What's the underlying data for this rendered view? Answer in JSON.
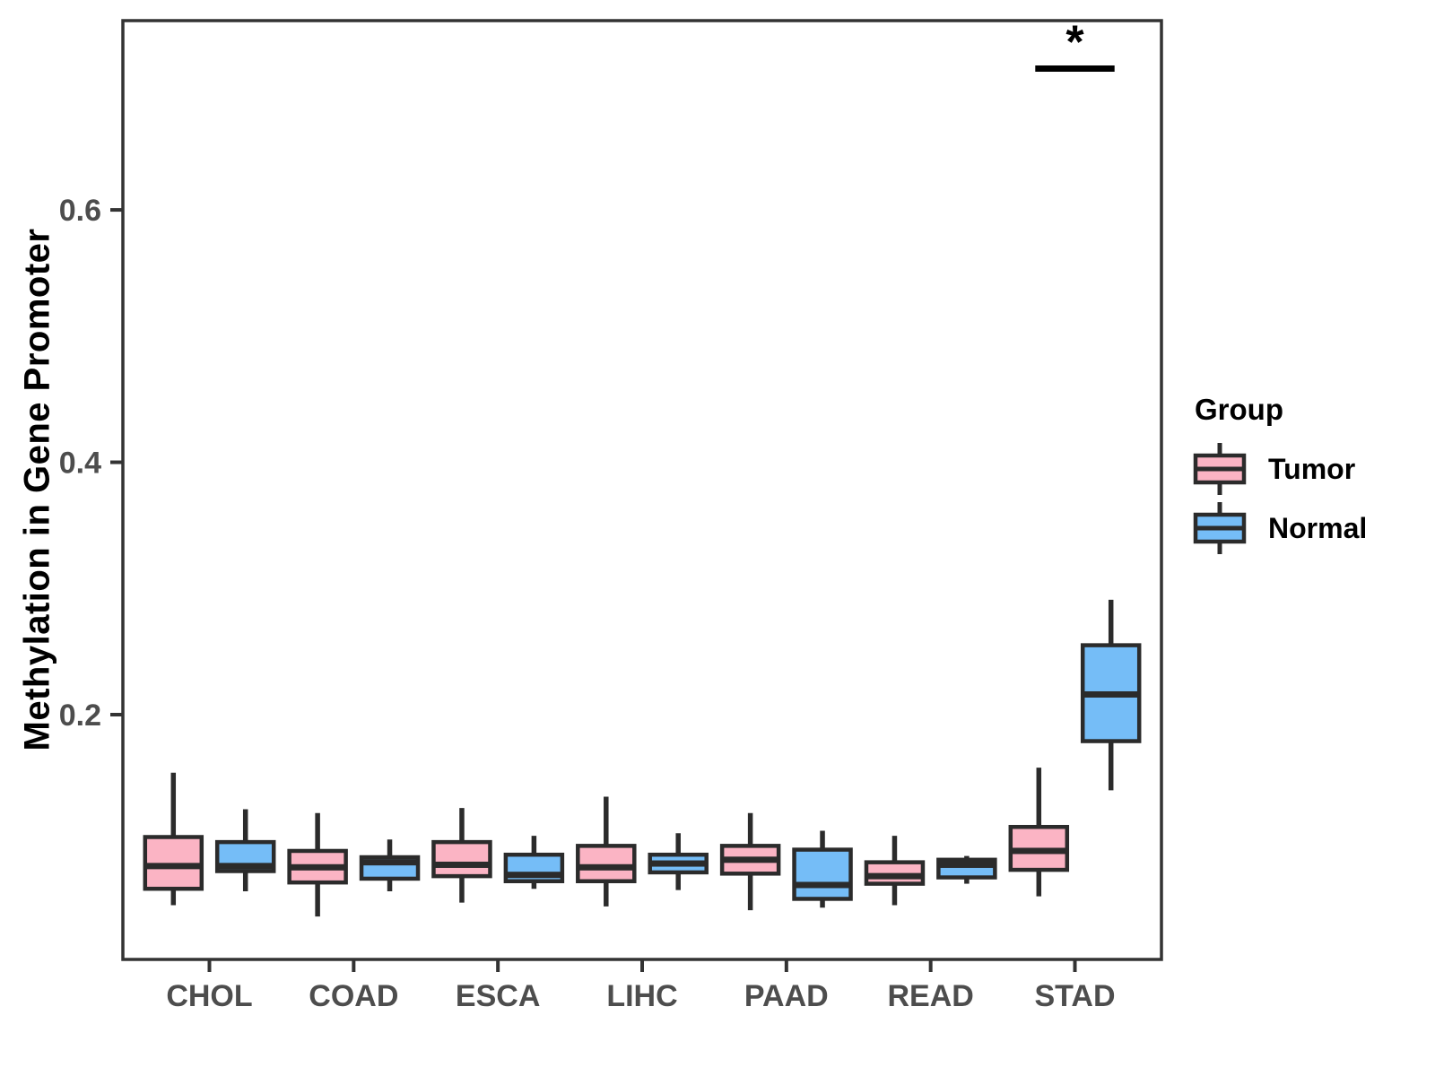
{
  "colors": {
    "tumor_fill": "#FBB4C4",
    "normal_fill": "#75BDF7",
    "box_stroke": "#2B2B2B",
    "panel_border": "#333333",
    "tick_label": "#4D4D4D",
    "text": "#000000",
    "background": "#FFFFFF"
  },
  "legend": {
    "title": "Group",
    "items": [
      {
        "id": "tumor",
        "label": "Tumor",
        "fill": "#FBB4C4"
      },
      {
        "id": "normal",
        "label": "Normal",
        "fill": "#75BDF7"
      }
    ]
  },
  "chart_data": {
    "type": "boxplot",
    "title": "",
    "xlabel": "",
    "ylabel": "Methylation in Gene Promoter",
    "categories": [
      "CHOL",
      "COAD",
      "ESCA",
      "LIHC",
      "PAAD",
      "READ",
      "STAD"
    ],
    "yticks": [
      0.2,
      0.4,
      0.6
    ],
    "ytick_labels": [
      "0.2",
      "0.4",
      "0.6"
    ],
    "ylim": [
      0.006,
      0.75
    ],
    "grid": false,
    "legend_title": "Group",
    "legend_position": "right",
    "stats_order": [
      "whisker_low",
      "q1",
      "median",
      "q3",
      "whisker_high"
    ],
    "series": [
      {
        "name": "Tumor",
        "fill": "#FBB4C4",
        "stats": [
          [
            0.049,
            0.062,
            0.08,
            0.103,
            0.154
          ],
          [
            0.04,
            0.067,
            0.079,
            0.092,
            0.122
          ],
          [
            0.051,
            0.072,
            0.081,
            0.099,
            0.126
          ],
          [
            0.048,
            0.068,
            0.079,
            0.096,
            0.135
          ],
          [
            0.045,
            0.074,
            0.085,
            0.096,
            0.122
          ],
          [
            0.049,
            0.066,
            0.072,
            0.083,
            0.104
          ],
          [
            0.056,
            0.077,
            0.092,
            0.111,
            0.158
          ]
        ]
      },
      {
        "name": "Normal",
        "fill": "#75BDF7",
        "stats": [
          [
            0.06,
            0.076,
            0.08,
            0.099,
            0.125
          ],
          [
            0.06,
            0.07,
            0.083,
            0.087,
            0.101
          ],
          [
            0.062,
            0.068,
            0.073,
            0.089,
            0.104
          ],
          [
            0.061,
            0.075,
            0.082,
            0.089,
            0.106
          ],
          [
            0.047,
            0.054,
            0.065,
            0.093,
            0.108
          ],
          [
            0.066,
            0.071,
            0.081,
            0.085,
            0.088
          ],
          [
            0.14,
            0.179,
            0.216,
            0.255,
            0.291
          ]
        ]
      }
    ],
    "significance": {
      "label": "*",
      "category": "STAD",
      "y": 0.712
    }
  }
}
